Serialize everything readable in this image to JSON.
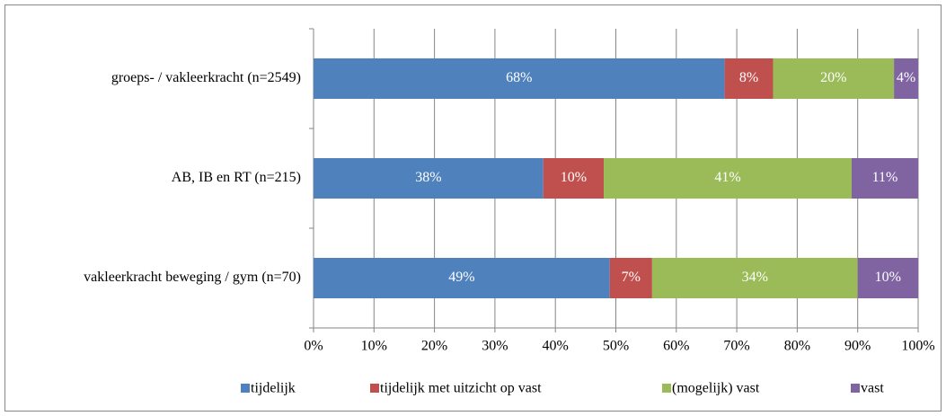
{
  "chart_data": {
    "type": "stacked_barh",
    "categories": [
      "groeps- / vakleerkracht (n=2549)",
      "AB, IB en RT (n=215)",
      "vakleerkracht beweging / gym (n=70)"
    ],
    "series": [
      {
        "name": "tijdelijk",
        "color": "#4f81bd",
        "values": [
          68,
          38,
          49
        ],
        "value_labels": [
          "68%",
          "38%",
          "49%"
        ]
      },
      {
        "name": "tijdelijk met uitzicht op vast",
        "color": "#c0504d",
        "values": [
          8,
          10,
          7
        ],
        "value_labels": [
          "8%",
          "10%",
          "7%"
        ]
      },
      {
        "name": "(mogelijk) vast",
        "color": "#9bbb59",
        "values": [
          20,
          41,
          34
        ],
        "value_labels": [
          "20%",
          "41%",
          "34%"
        ]
      },
      {
        "name": "vast",
        "color": "#8064a2",
        "values": [
          4,
          11,
          10
        ],
        "value_labels": [
          "4%",
          "11%",
          "10%"
        ]
      }
    ],
    "xlim": [
      0,
      100
    ],
    "xticks": [
      {
        "value": 0,
        "label": "0%"
      },
      {
        "value": 10,
        "label": "10%"
      },
      {
        "value": 20,
        "label": "20%"
      },
      {
        "value": 30,
        "label": "30%"
      },
      {
        "value": 40,
        "label": "40%"
      },
      {
        "value": 50,
        "label": "50%"
      },
      {
        "value": 60,
        "label": "60%"
      },
      {
        "value": 70,
        "label": "70%"
      },
      {
        "value": 80,
        "label": "80%"
      },
      {
        "value": 90,
        "label": "90%"
      },
      {
        "value": 100,
        "label": "100%"
      }
    ],
    "grid": true,
    "legend": "bottom"
  }
}
